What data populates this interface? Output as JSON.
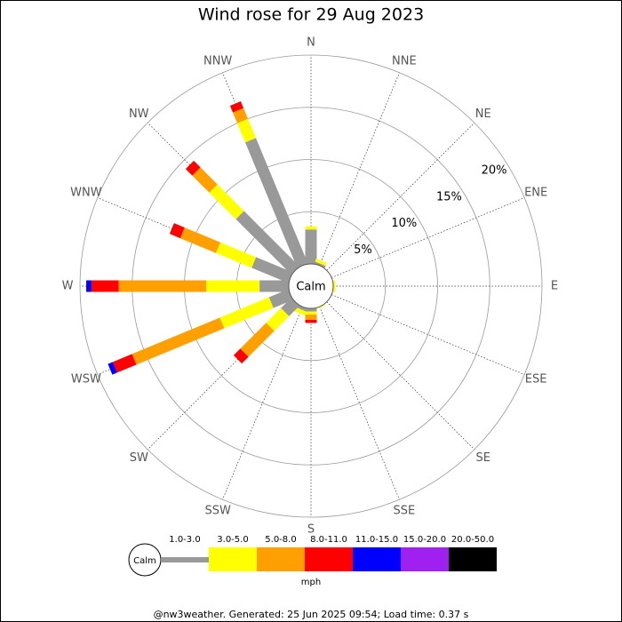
{
  "chart_data": {
    "type": "windrose",
    "title": "Wind rose for 29 Aug 2023",
    "directions": [
      "N",
      "NNE",
      "NE",
      "ENE",
      "E",
      "ESE",
      "SE",
      "SSE",
      "S",
      "SSW",
      "SW",
      "WSW",
      "W",
      "WNW",
      "NW",
      "NNW"
    ],
    "rlim": [
      0,
      20
    ],
    "rticks": [
      {
        "value": 5,
        "label": "5%"
      },
      {
        "value": 10,
        "label": "10%"
      },
      {
        "value": 15,
        "label": "15%"
      },
      {
        "value": 20,
        "label": "20%"
      }
    ],
    "calm_label": "Calm",
    "units": "mph",
    "series": [
      {
        "name": "1.0-3.0",
        "color": "#999999",
        "values": [
          3.3,
          0.2,
          0,
          0,
          0,
          0,
          0,
          0,
          0.3,
          0.3,
          1.4,
          2.0,
          2.8,
          3.8,
          7.5,
          13.0
        ]
      },
      {
        "name": "3.0-5.0",
        "color": "#ffff00",
        "values": [
          0.3,
          0.3,
          0,
          0,
          0.2,
          0,
          0,
          0.1,
          0.3,
          0.4,
          2.0,
          5.1,
          5.1,
          3.7,
          3.6,
          2.0
        ]
      },
      {
        "name": "5.0-8.0",
        "color": "#ff9f00",
        "values": [
          0,
          0,
          0,
          0,
          0,
          0,
          0,
          0,
          0.5,
          0,
          3.5,
          9.1,
          8.4,
          3.7,
          2.3,
          1.1
        ]
      },
      {
        "name": "8.0-11.0",
        "color": "#ff0000",
        "values": [
          0,
          0,
          0,
          0,
          0,
          0,
          0,
          0,
          0.3,
          0,
          0.9,
          2.0,
          2.6,
          1.1,
          0.9,
          0.7
        ]
      },
      {
        "name": "11.0-15.0",
        "color": "#0000ff",
        "values": [
          0,
          0,
          0,
          0,
          0,
          0,
          0,
          0,
          0,
          0,
          0,
          0.5,
          0.5,
          0,
          0,
          0
        ]
      },
      {
        "name": "15.0-20.0",
        "color": "#a020f0",
        "values": [
          0,
          0,
          0,
          0,
          0,
          0,
          0,
          0,
          0,
          0,
          0,
          0,
          0,
          0,
          0,
          0
        ]
      },
      {
        "name": "20.0-50.0",
        "color": "#000000",
        "values": [
          0,
          0,
          0,
          0,
          0,
          0,
          0,
          0,
          0,
          0,
          0,
          0,
          0,
          0,
          0,
          0
        ]
      }
    ],
    "footer": "@nw3weather. Generated: 25 Jun 2025 09:54; Load time: 0.37 s"
  }
}
